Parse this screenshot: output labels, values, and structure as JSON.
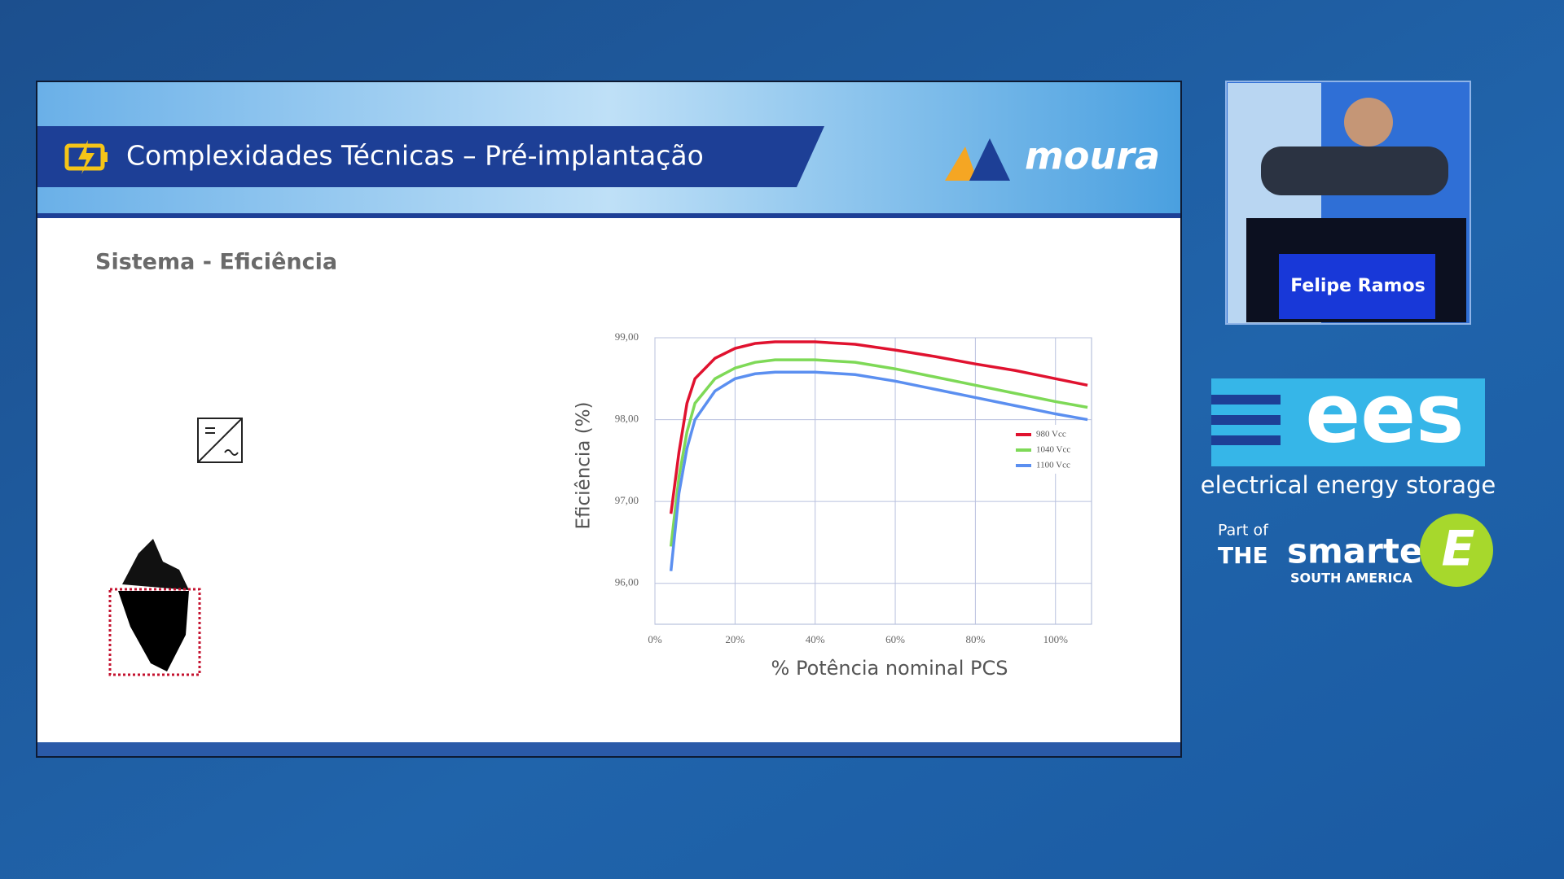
{
  "slide": {
    "title": "Complexidades Técnicas – Pré-implantação",
    "brand": "moura",
    "subtitle": "Sistema - Eficiência"
  },
  "chart_data": {
    "type": "line",
    "ylabel": "Eficiência (%)",
    "xlabel": "% Potência nominal PCS",
    "x": [
      4,
      6,
      8,
      10,
      15,
      20,
      25,
      30,
      40,
      50,
      60,
      70,
      80,
      90,
      100,
      108
    ],
    "series": [
      {
        "name": "980  Vcc",
        "color": "#e0122f",
        "values": [
          96.85,
          97.6,
          98.2,
          98.5,
          98.75,
          98.87,
          98.93,
          98.95,
          98.95,
          98.92,
          98.85,
          98.77,
          98.68,
          98.6,
          98.5,
          98.42
        ]
      },
      {
        "name": "1040 Vcc",
        "color": "#7ed957",
        "values": [
          96.45,
          97.3,
          97.85,
          98.2,
          98.5,
          98.63,
          98.7,
          98.73,
          98.73,
          98.7,
          98.62,
          98.52,
          98.42,
          98.32,
          98.22,
          98.15
        ]
      },
      {
        "name": "1100 Vcc",
        "color": "#5b8ff0",
        "values": [
          96.15,
          97.1,
          97.65,
          98.0,
          98.35,
          98.5,
          98.56,
          98.58,
          98.58,
          98.55,
          98.47,
          98.37,
          98.27,
          98.17,
          98.07,
          98.0
        ]
      }
    ],
    "xlim": [
      0,
      109
    ],
    "ylim": [
      95.5,
      99
    ],
    "xticks": [
      {
        "value": 0,
        "label": "0%"
      },
      {
        "value": 20,
        "label": "20%"
      },
      {
        "value": 40,
        "label": "40%"
      },
      {
        "value": 60,
        "label": "60%"
      },
      {
        "value": 80,
        "label": "80%"
      },
      {
        "value": 100,
        "label": "100%"
      }
    ],
    "yticks": [
      {
        "value": 96,
        "label": "96,00"
      },
      {
        "value": 97,
        "label": "97,00"
      },
      {
        "value": 98,
        "label": "98,00"
      },
      {
        "value": 99,
        "label": "99,00"
      }
    ],
    "grid": true
  },
  "speaker": {
    "name": "Felipe Ramos"
  },
  "event": {
    "logo": "ees",
    "tagline": "electrical energy storage",
    "part_of": "Part of",
    "the": "THE",
    "smarter": "smarter",
    "region": "SOUTH AMERICA",
    "letter": "E"
  }
}
